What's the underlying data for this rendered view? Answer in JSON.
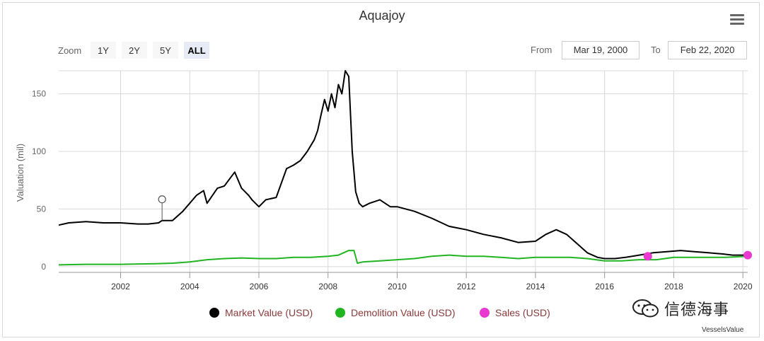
{
  "colors": {
    "market": "#000000",
    "demolition": "#22b522",
    "sales": "#e83ad0",
    "grid": "#d8d8d8"
  },
  "toolbar": {
    "zoom_label": "Zoom",
    "zoom_buttons": [
      "1Y",
      "2Y",
      "5Y",
      "ALL"
    ],
    "active_zoom": "ALL",
    "from_label": "From",
    "from_value": "Mar 19, 2000",
    "to_label": "To",
    "to_value": "Feb 22, 2020",
    "menu_icon": "hamburger-menu-icon"
  },
  "legend": {
    "market": "Market Value (USD)",
    "demolition": "Demolition Value (USD)",
    "sales": "Sales (USD)"
  },
  "watermark": {
    "icon": "wechat-icon",
    "text": "信德海事"
  },
  "credit": "VesselsValue",
  "chart_data": {
    "type": "line",
    "title": "Aquajoy",
    "ylabel": "Valuation (mil)",
    "xlim": [
      2000.21,
      2020.14
    ],
    "ylim": [
      -5,
      170
    ],
    "yticks": [
      0,
      50,
      100,
      150
    ],
    "xticks": [
      2002,
      2004,
      2006,
      2008,
      2010,
      2012,
      2014,
      2016,
      2018,
      2020
    ],
    "grid": true,
    "legend_position": "bottom-center",
    "series": [
      {
        "name": "Market Value (USD)",
        "x": [
          2000.21,
          2000.5,
          2001.0,
          2001.5,
          2002.0,
          2002.5,
          2002.8,
          2003.1,
          2003.2,
          2003.5,
          2003.8,
          2004.0,
          2004.2,
          2004.4,
          2004.5,
          2004.8,
          2005.0,
          2005.2,
          2005.3,
          2005.5,
          2005.7,
          2005.8,
          2006.0,
          2006.2,
          2006.5,
          2006.8,
          2007.0,
          2007.2,
          2007.4,
          2007.6,
          2007.7,
          2007.8,
          2007.9,
          2008.0,
          2008.1,
          2008.2,
          2008.3,
          2008.4,
          2008.5,
          2008.6,
          2008.7,
          2008.8,
          2008.9,
          2009.0,
          2009.2,
          2009.5,
          2009.8,
          2010.0,
          2010.5,
          2011.0,
          2011.5,
          2012.0,
          2012.5,
          2013.0,
          2013.5,
          2014.0,
          2014.3,
          2014.6,
          2014.9,
          2015.2,
          2015.5,
          2015.8,
          2016.0,
          2016.3,
          2016.6,
          2017.0,
          2017.4,
          2017.8,
          2018.2,
          2018.6,
          2019.0,
          2019.4,
          2019.7,
          2020.14
        ],
        "y": [
          36,
          38,
          39,
          38,
          38,
          37,
          37,
          38,
          40,
          40,
          48,
          55,
          62,
          66,
          55,
          68,
          70,
          78,
          82,
          68,
          62,
          58,
          52,
          58,
          60,
          85,
          88,
          92,
          100,
          110,
          118,
          132,
          145,
          135,
          150,
          138,
          158,
          150,
          170,
          165,
          100,
          65,
          55,
          52,
          55,
          58,
          52,
          52,
          48,
          42,
          35,
          32,
          28,
          25,
          21,
          22,
          28,
          32,
          28,
          20,
          12,
          8,
          7,
          7,
          8,
          10,
          12,
          13,
          14,
          13,
          12,
          11,
          10,
          10
        ]
      },
      {
        "name": "Demolition Value (USD)",
        "x": [
          2000.21,
          2001.0,
          2002.0,
          2003.0,
          2003.5,
          2004.0,
          2004.5,
          2005.0,
          2005.5,
          2006.0,
          2006.5,
          2007.0,
          2007.5,
          2008.0,
          2008.3,
          2008.6,
          2008.75,
          2008.85,
          2009.0,
          2009.5,
          2010.0,
          2010.5,
          2011.0,
          2011.5,
          2012.0,
          2012.5,
          2013.0,
          2013.5,
          2014.0,
          2014.5,
          2015.0,
          2015.5,
          2016.0,
          2016.5,
          2017.0,
          2017.5,
          2018.0,
          2018.5,
          2019.0,
          2019.5,
          2020.14
        ],
        "y": [
          1.5,
          2,
          2,
          2.5,
          3,
          4,
          6,
          7,
          7.5,
          7,
          7,
          8,
          8,
          9,
          10,
          14,
          14,
          3,
          4,
          5,
          6,
          7,
          9,
          10,
          9,
          9,
          8,
          7,
          8,
          8,
          8,
          7,
          5,
          5,
          6,
          6,
          8,
          8,
          8,
          8,
          9
        ]
      },
      {
        "name": "Sales (USD)",
        "type": "scatter",
        "x": [
          2017.25,
          2020.14
        ],
        "y": [
          9,
          10
        ]
      }
    ],
    "annotations": [
      {
        "x": 2003.2,
        "y": 40,
        "marker": "pin"
      }
    ]
  }
}
